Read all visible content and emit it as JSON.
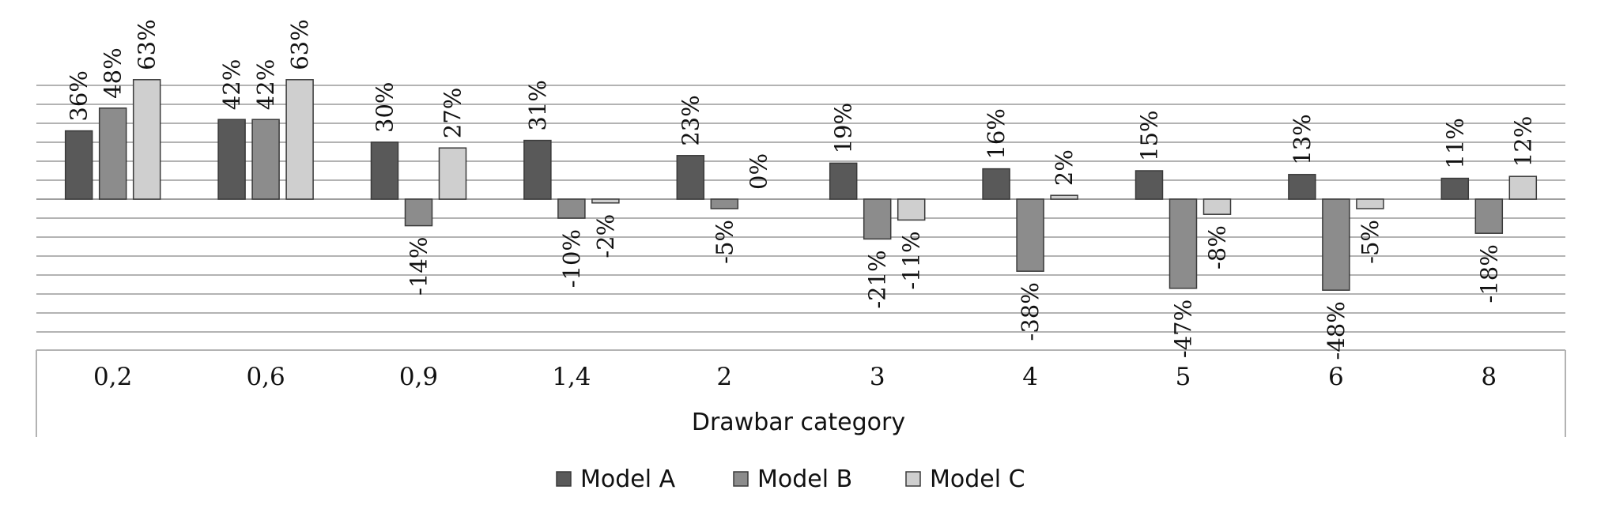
{
  "chart_data": {
    "type": "bar",
    "title": "",
    "xlabel": "Drawbar category",
    "ylabel": "",
    "categories": [
      "0,2",
      "0,6",
      "0,9",
      "1,4",
      "2",
      "3",
      "4",
      "5",
      "6",
      "8"
    ],
    "series": [
      {
        "name": "Model A",
        "color": "#595959",
        "values": [
          36,
          42,
          30,
          31,
          23,
          19,
          16,
          15,
          13,
          11
        ]
      },
      {
        "name": "Model B",
        "color": "#8c8c8c",
        "values": [
          48,
          42,
          -14,
          -10,
          -5,
          -21,
          -38,
          -47,
          -48,
          -18
        ]
      },
      {
        "name": "Model C",
        "color": "#cfcfcf",
        "values": [
          63,
          63,
          27,
          -2,
          0,
          -11,
          2,
          -8,
          -5,
          12
        ]
      }
    ],
    "data_labels": [
      [
        "36%",
        "42%",
        "30%",
        "31%",
        "23%",
        "19%",
        "16%",
        "15%",
        "13%",
        "11%"
      ],
      [
        "48%",
        "42%",
        "-14%",
        "-10%",
        "-5%",
        "-21%",
        "-38%",
        "-47%",
        "-48%",
        "-18%"
      ],
      [
        "63%",
        "63%",
        "27%",
        "-2%",
        "0%",
        "-11%",
        "2%",
        "-8%",
        "-5%",
        "12%"
      ]
    ],
    "grid": true,
    "legend": "bottom"
  }
}
